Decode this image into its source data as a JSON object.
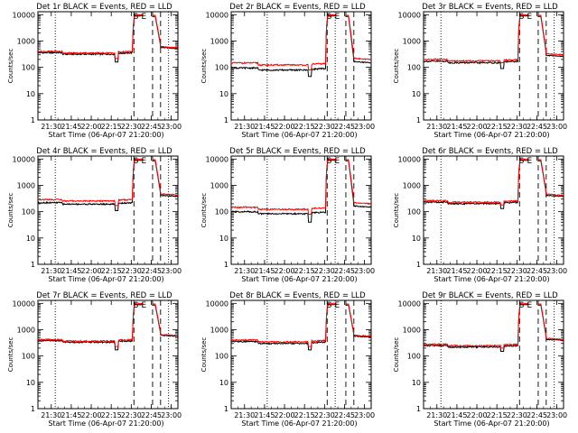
{
  "colors": {
    "events": "#000000",
    "lld": "#ff0000",
    "axis": "#000000",
    "background": "#ffffff"
  },
  "chart_data": [
    {
      "type": "line",
      "title": "Det 1r BLACK = Events, RED = LLD",
      "xlabel": "Start Time (06-Apr-07 21:20:00)",
      "ylabel": "Counts/sec",
      "yscale": "log",
      "ylim": [
        1,
        13000
      ],
      "xlim": [
        0,
        105
      ],
      "xtick_labels": [
        "21:30",
        "21:45",
        "22:00",
        "22:15",
        "22:30",
        "22:45",
        "23:00"
      ],
      "ytick_labels": [
        "1",
        "10",
        "100",
        "1000",
        "10000"
      ],
      "flags": [
        "S",
        "E"
      ],
      "vlines": {
        "dotted": [
          13,
          98
        ],
        "dashed": [
          72,
          86,
          92
        ]
      },
      "series": [
        {
          "name": "Events",
          "color": "black",
          "base": 360,
          "dip": 160,
          "spike": 9000,
          "end": 520,
          "shape": "a"
        },
        {
          "name": "LLD",
          "color": "red",
          "base": 400,
          "dip": 220,
          "spike": 10000,
          "end": 560,
          "shape": "a"
        }
      ]
    },
    {
      "type": "line",
      "title": "Det 2r BLACK = Events, RED = LLD",
      "xlabel": "Start Time (06-Apr-07 21:20:00)",
      "ylabel": "Counts/sec",
      "yscale": "log",
      "ylim": [
        1,
        13000
      ],
      "xlim": [
        0,
        105
      ],
      "xtick_labels": [
        "21:30",
        "21:45",
        "22:00",
        "22:15",
        "22:30",
        "22:45",
        "23:00"
      ],
      "ytick_labels": [
        "1",
        "10",
        "100",
        "1000",
        "10000"
      ],
      "flags": [
        "S",
        "E"
      ],
      "vlines": {
        "dotted": [
          27,
          78
        ],
        "dashed": [
          72,
          86,
          92
        ]
      },
      "series": [
        {
          "name": "Events",
          "color": "black",
          "base": 90,
          "dip": 45,
          "spike": 9000,
          "end": 150,
          "shape": "b"
        },
        {
          "name": "LLD",
          "color": "red",
          "base": 140,
          "dip": 80,
          "spike": 10000,
          "end": 200,
          "shape": "b"
        }
      ]
    },
    {
      "type": "line",
      "title": "Det 3r BLACK = Events, RED = LLD",
      "xlabel": "Start Time (06-Apr-07 21:20:00)",
      "ylabel": "Counts/sec",
      "yscale": "log",
      "ylim": [
        1,
        13000
      ],
      "xlim": [
        0,
        105
      ],
      "xtick_labels": [
        "21:30",
        "21:45",
        "22:00",
        "22:15",
        "22:30",
        "22:45",
        "23:00"
      ],
      "ytick_labels": [
        "1",
        "10",
        "100",
        "1000",
        "10000"
      ],
      "flags": [
        "S",
        "E"
      ],
      "vlines": {
        "dotted": [
          13,
          98
        ],
        "dashed": [
          72,
          86,
          92
        ]
      },
      "series": [
        {
          "name": "Events",
          "color": "black",
          "base": 170,
          "dip": 90,
          "spike": 9000,
          "end": 260,
          "shape": "a"
        },
        {
          "name": "LLD",
          "color": "red",
          "base": 200,
          "dip": 150,
          "spike": 10000,
          "end": 300,
          "shape": "a"
        }
      ]
    },
    {
      "type": "line",
      "title": "Det 4r BLACK = Events, RED = LLD",
      "xlabel": "Start Time (06-Apr-07 21:20:00)",
      "ylabel": "Counts/sec",
      "yscale": "log",
      "ylim": [
        1,
        13000
      ],
      "xlim": [
        0,
        105
      ],
      "xtick_labels": [
        "21:30",
        "21:45",
        "22:00",
        "22:15",
        "22:30",
        "22:45",
        "23:00"
      ],
      "ytick_labels": [
        "1",
        "10",
        "100",
        "1000",
        "10000"
      ],
      "flags": [
        "S",
        "E"
      ],
      "vlines": {
        "dotted": [
          13,
          98
        ],
        "dashed": [
          72,
          86,
          92
        ]
      },
      "series": [
        {
          "name": "Events",
          "color": "black",
          "base": 220,
          "dip": 110,
          "spike": 9000,
          "end": 380,
          "shape": "a"
        },
        {
          "name": "LLD",
          "color": "red",
          "base": 290,
          "dip": 170,
          "spike": 10000,
          "end": 430,
          "shape": "a"
        }
      ]
    },
    {
      "type": "line",
      "title": "Det 5r BLACK = Events, RED = LLD",
      "xlabel": "Start Time (06-Apr-07 21:20:00)",
      "ylabel": "Counts/sec",
      "yscale": "log",
      "ylim": [
        1,
        13000
      ],
      "xlim": [
        0,
        105
      ],
      "xtick_labels": [
        "21:30",
        "21:45",
        "22:00",
        "22:15",
        "22:30",
        "22:45",
        "23:00"
      ],
      "ytick_labels": [
        "1",
        "10",
        "100",
        "1000",
        "10000"
      ],
      "flags": [
        "S",
        "E"
      ],
      "vlines": {
        "dotted": [
          27,
          78
        ],
        "dashed": [
          72,
          86,
          92
        ]
      },
      "series": [
        {
          "name": "Events",
          "color": "black",
          "base": 95,
          "dip": 40,
          "spike": 9000,
          "end": 150,
          "shape": "b"
        },
        {
          "name": "LLD",
          "color": "red",
          "base": 140,
          "dip": 80,
          "spike": 10000,
          "end": 200,
          "shape": "b"
        }
      ]
    },
    {
      "type": "line",
      "title": "Det 6r BLACK = Events, RED = LLD",
      "xlabel": "Start Time (06-Apr-07 21:20:00)",
      "ylabel": "Counts/sec",
      "yscale": "log",
      "ylim": [
        1,
        13000
      ],
      "xlim": [
        0,
        105
      ],
      "xtick_labels": [
        "21:30",
        "21:45",
        "22:00",
        "22:15",
        "22:30",
        "22:45",
        "23:00"
      ],
      "ytick_labels": [
        "1",
        "10",
        "100",
        "1000",
        "10000"
      ],
      "flags": [
        "S",
        "E"
      ],
      "vlines": {
        "dotted": [
          13,
          98
        ],
        "dashed": [
          72,
          86,
          92
        ]
      },
      "series": [
        {
          "name": "Events",
          "color": "black",
          "base": 230,
          "dip": 130,
          "spike": 9000,
          "end": 380,
          "shape": "a"
        },
        {
          "name": "LLD",
          "color": "red",
          "base": 260,
          "dip": 180,
          "spike": 10000,
          "end": 420,
          "shape": "a"
        }
      ]
    },
    {
      "type": "line",
      "title": "Det 7r BLACK = Events, RED = LLD",
      "xlabel": "Start Time (06-Apr-07 21:20:00)",
      "ylabel": "Counts/sec",
      "yscale": "log",
      "ylim": [
        1,
        13000
      ],
      "xlim": [
        0,
        105
      ],
      "xtick_labels": [
        "21:30",
        "21:45",
        "22:00",
        "22:15",
        "22:30",
        "22:45",
        "23:00"
      ],
      "ytick_labels": [
        "1",
        "10",
        "100",
        "1000",
        "10000"
      ],
      "flags": [
        "S",
        "E"
      ],
      "vlines": {
        "dotted": [
          13,
          98
        ],
        "dashed": [
          72,
          86,
          92
        ]
      },
      "series": [
        {
          "name": "Events",
          "color": "black",
          "base": 380,
          "dip": 170,
          "spike": 9000,
          "end": 560,
          "shape": "a"
        },
        {
          "name": "LLD",
          "color": "red",
          "base": 420,
          "dip": 230,
          "spike": 10000,
          "end": 600,
          "shape": "a"
        }
      ]
    },
    {
      "type": "line",
      "title": "Det 8r BLACK = Events, RED = LLD",
      "xlabel": "Start Time (06-Apr-07 21:20:00)",
      "ylabel": "Counts/sec",
      "yscale": "log",
      "ylim": [
        1,
        13000
      ],
      "xlim": [
        0,
        105
      ],
      "xtick_labels": [
        "21:30",
        "21:45",
        "22:00",
        "22:15",
        "22:30",
        "22:45",
        "23:00"
      ],
      "ytick_labels": [
        "1",
        "10",
        "100",
        "1000",
        "10000"
      ],
      "flags": [
        "S",
        "E"
      ],
      "vlines": {
        "dotted": [
          27,
          78
        ],
        "dashed": [
          72,
          86,
          92
        ]
      },
      "series": [
        {
          "name": "Events",
          "color": "black",
          "base": 340,
          "dip": 170,
          "spike": 9000,
          "end": 520,
          "shape": "b"
        },
        {
          "name": "LLD",
          "color": "red",
          "base": 390,
          "dip": 230,
          "spike": 10000,
          "end": 560,
          "shape": "b"
        }
      ]
    },
    {
      "type": "line",
      "title": "Det 9r BLACK = Events, RED = LLD",
      "xlabel": "Start Time (06-Apr-07 21:20:00)",
      "ylabel": "Counts/sec",
      "yscale": "log",
      "ylim": [
        1,
        13000
      ],
      "xlim": [
        0,
        105
      ],
      "xtick_labels": [
        "21:30",
        "21:45",
        "22:00",
        "22:15",
        "22:30",
        "22:45",
        "23:00"
      ],
      "ytick_labels": [
        "1",
        "10",
        "100",
        "1000",
        "10000"
      ],
      "flags": [
        "S",
        "E"
      ],
      "vlines": {
        "dotted": [
          13,
          98
        ],
        "dashed": [
          72,
          86,
          92
        ]
      },
      "series": [
        {
          "name": "Events",
          "color": "black",
          "base": 250,
          "dip": 150,
          "spike": 9000,
          "end": 390,
          "shape": "a"
        },
        {
          "name": "LLD",
          "color": "red",
          "base": 280,
          "dip": 200,
          "spike": 10000,
          "end": 430,
          "shape": "a"
        }
      ]
    }
  ]
}
